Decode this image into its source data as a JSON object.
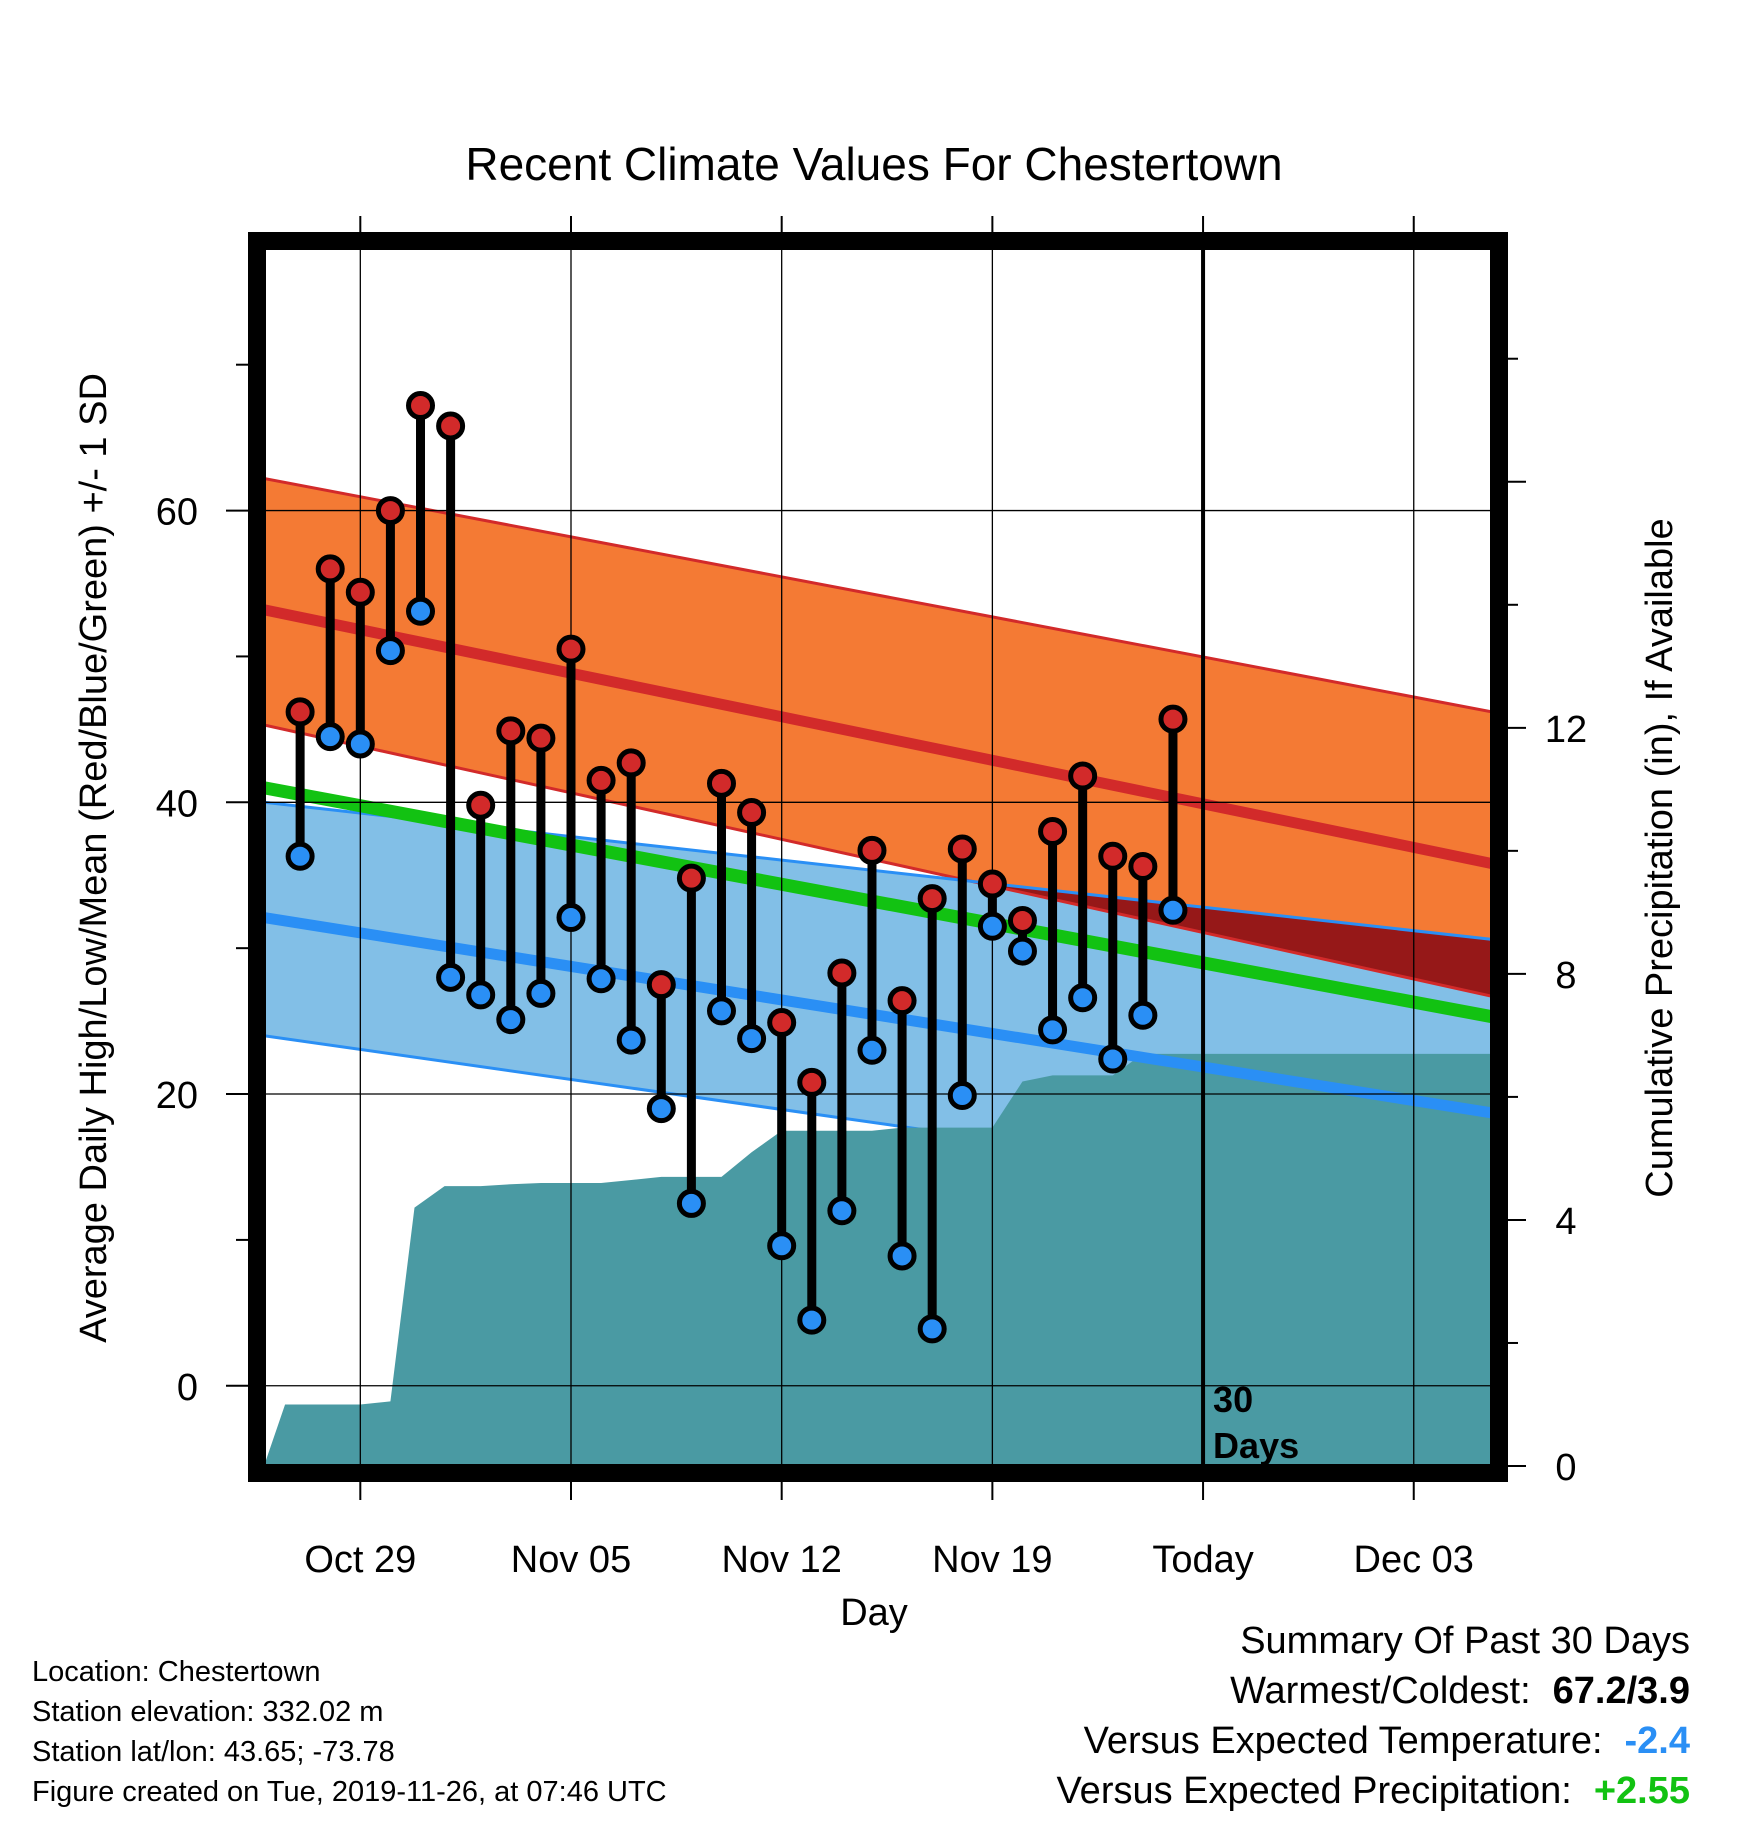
{
  "chart_data": {
    "type": "line",
    "title": "Recent Climate Values For Chestertown",
    "xlabel": "Day",
    "ylabel": "Average Daily High/Low/Mean (Red/Blue/Green) +/- 1 SD",
    "y2label": "Cumulative Precipitation (in), If Available",
    "x_ticks": [
      {
        "day": 3,
        "label": "Oct 29"
      },
      {
        "day": 10,
        "label": "Nov 05"
      },
      {
        "day": 17,
        "label": "Nov 12"
      },
      {
        "day": 24,
        "label": "Nov 19"
      },
      {
        "day": 31,
        "label": "Today"
      },
      {
        "day": 38,
        "label": "Dec 03"
      }
    ],
    "xlim": [
      -0.2,
      40.6
    ],
    "ylim": [
      -5.5,
      78
    ],
    "y_ticks": [
      0,
      20,
      40,
      60
    ],
    "y2lim": [
      0,
      19.8
    ],
    "y2_ticks": [
      0,
      4,
      8,
      12
    ],
    "today_day": 31,
    "today_note": [
      "30",
      "Days"
    ],
    "normals": {
      "days": [
        -0.2,
        40.6
      ],
      "high_mean": [
        53.2,
        35.8
      ],
      "high_upper": [
        62.2,
        46.2
      ],
      "high_lower": [
        45.3,
        26.7
      ],
      "low_mean": [
        32.1,
        18.7
      ],
      "low_upper": [
        40.0,
        30.6
      ],
      "low_lower": [
        24.0,
        12.0
      ],
      "mean": [
        41.0,
        25.3
      ]
    },
    "observations": [
      {
        "day": 1,
        "high": 46.2,
        "low": 36.3
      },
      {
        "day": 2,
        "high": 56.0,
        "low": 44.5
      },
      {
        "day": 3,
        "high": 54.4,
        "low": 44.0
      },
      {
        "day": 4,
        "high": 60.0,
        "low": 50.4
      },
      {
        "day": 5,
        "high": 67.2,
        "low": 53.1
      },
      {
        "day": 6,
        "high": 65.8,
        "low": 28.0
      },
      {
        "day": 7,
        "high": 39.8,
        "low": 26.8
      },
      {
        "day": 8,
        "high": 44.9,
        "low": 25.1
      },
      {
        "day": 9,
        "high": 44.4,
        "low": 26.9
      },
      {
        "day": 10,
        "high": 50.5,
        "low": 32.1
      },
      {
        "day": 11,
        "high": 41.5,
        "low": 27.9
      },
      {
        "day": 12,
        "high": 42.7,
        "low": 23.7
      },
      {
        "day": 13,
        "high": 27.5,
        "low": 19.0
      },
      {
        "day": 14,
        "high": 34.8,
        "low": 12.5
      },
      {
        "day": 15,
        "high": 41.3,
        "low": 25.7
      },
      {
        "day": 16,
        "high": 39.3,
        "low": 23.8
      },
      {
        "day": 17,
        "high": 24.9,
        "low": 9.6
      },
      {
        "day": 18,
        "high": 20.8,
        "low": 4.5
      },
      {
        "day": 19,
        "high": 28.3,
        "low": 12.0
      },
      {
        "day": 20,
        "high": 36.7,
        "low": 23.0
      },
      {
        "day": 21,
        "high": 26.4,
        "low": 8.9
      },
      {
        "day": 22,
        "high": 33.4,
        "low": 3.9
      },
      {
        "day": 23,
        "high": 36.8,
        "low": 19.9
      },
      {
        "day": 24,
        "high": 34.4,
        "low": 31.5
      },
      {
        "day": 25,
        "high": 31.9,
        "low": 29.8
      },
      {
        "day": 26,
        "high": 38.0,
        "low": 24.4
      },
      {
        "day": 27,
        "high": 41.8,
        "low": 26.6
      },
      {
        "day": 28,
        "high": 36.3,
        "low": 22.4
      },
      {
        "day": 29,
        "high": 35.6,
        "low": 25.4
      },
      {
        "day": 30,
        "high": 45.7,
        "low": 32.6
      }
    ],
    "cumulative_precip": {
      "days": [
        -0.2,
        0.5,
        2.0,
        3.0,
        4.0,
        4.8,
        5.8,
        7.0,
        8.0,
        9.0,
        10.0,
        11.0,
        12.0,
        13.0,
        14.0,
        15.0,
        16.0,
        17.0,
        18.0,
        19.0,
        20.0,
        21.0,
        22.0,
        23.0,
        24.0,
        25.0,
        26.0,
        27.0,
        28.0,
        29.0,
        30.0,
        31.0,
        40.6
      ],
      "values": [
        0.0,
        1.0,
        1.0,
        1.0,
        1.05,
        4.2,
        4.55,
        4.55,
        4.58,
        4.6,
        4.6,
        4.6,
        4.65,
        4.7,
        4.7,
        4.7,
        5.1,
        5.45,
        5.45,
        5.45,
        5.45,
        5.5,
        5.5,
        5.5,
        5.5,
        6.25,
        6.35,
        6.35,
        6.35,
        6.7,
        6.7,
        6.7,
        6.7
      ]
    },
    "colors": {
      "high_band": "#f47a34",
      "high_line": "#d22a2a",
      "low_band": "#82bfe7",
      "low_line": "#2a8ff5",
      "mean_line": "#12c212",
      "overlap_band": "#961818",
      "precip": "#4a9aa3",
      "high_marker": "#d22a2a",
      "low_marker": "#2a8ff5"
    },
    "grid": true
  },
  "info": {
    "location": "Location: Chestertown",
    "elevation": "Station elevation: 332.02 m",
    "latlon": "Station lat/lon: 43.65; -73.78",
    "created": "Figure created on Tue, 2019-11-26, at 07:46 UTC"
  },
  "summary": {
    "heading": "Summary Of Past 30 Days",
    "warmest_label": "Warmest/Coldest:",
    "warmest_value": "67.2/3.9",
    "temp_label": "Versus Expected Temperature:",
    "temp_value": "-2.4",
    "temp_color": "#2a8ff5",
    "precip_label": "Versus Expected Precipitation:",
    "precip_value": "+2.55",
    "precip_color": "#12c212"
  }
}
